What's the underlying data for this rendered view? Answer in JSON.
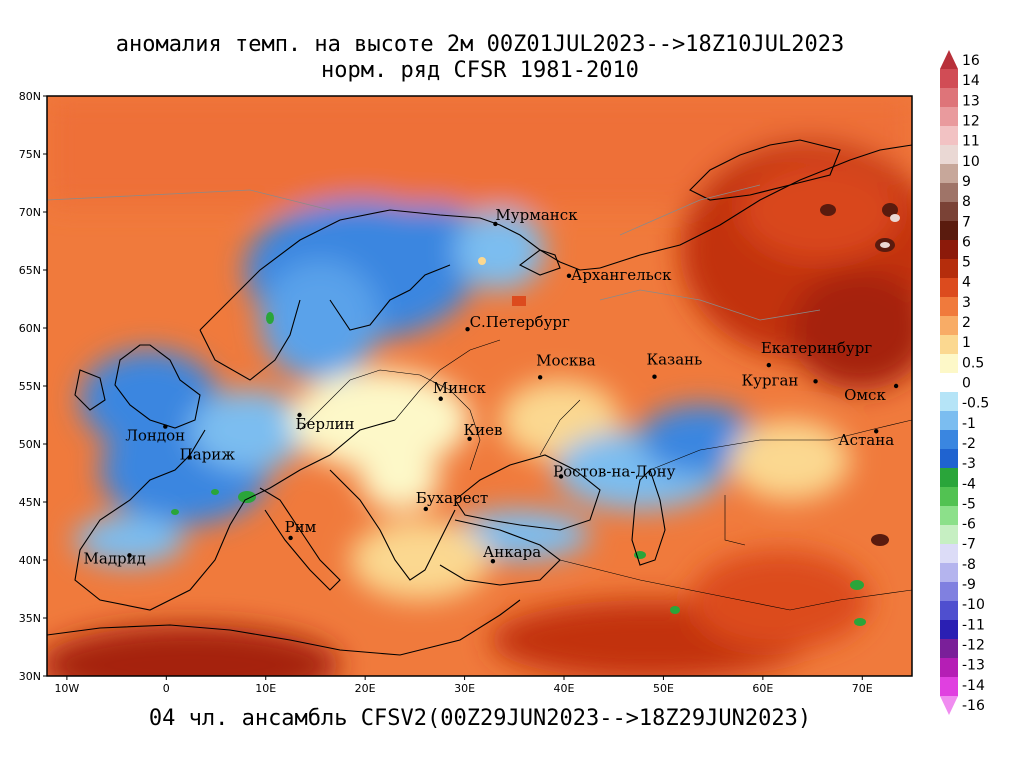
{
  "title": {
    "line1": "аномалия темп. на высоте 2м 00Z01JUL2023-->18Z10JUL2023",
    "line2": "норм. ряд CFSR 1981-2010"
  },
  "footer": "04 чл. ансамбль CFSV2(00Z29JUN2023-->18Z29JUN2023)",
  "map": {
    "lon_range": [
      -12,
      75
    ],
    "lat_range": [
      30,
      80
    ],
    "lat_ticks": [
      "30N",
      "35N",
      "40N",
      "45N",
      "50N",
      "55N",
      "60N",
      "65N",
      "70N",
      "75N",
      "80N"
    ],
    "lon_ticks": [
      "10W",
      "0",
      "10E",
      "20E",
      "30E",
      "40E",
      "50E",
      "60E",
      "70E"
    ],
    "cities": [
      {
        "name": "Мурманск",
        "lon": 33.1,
        "lat": 68.97
      },
      {
        "name": "Архангельск",
        "lon": 40.5,
        "lat": 64.5
      },
      {
        "name": "С.Петербург",
        "lon": 30.3,
        "lat": 59.9
      },
      {
        "name": "Москва",
        "lon": 37.6,
        "lat": 55.75
      },
      {
        "name": "Казань",
        "lon": 49.1,
        "lat": 55.8
      },
      {
        "name": "Екатеринбург",
        "lon": 60.6,
        "lat": 56.8
      },
      {
        "name": "Курган",
        "lon": 65.3,
        "lat": 55.4
      },
      {
        "name": "Омск",
        "lon": 73.4,
        "lat": 55.0
      },
      {
        "name": "Астана",
        "lon": 71.4,
        "lat": 51.1
      },
      {
        "name": "Минск",
        "lon": 27.6,
        "lat": 53.9
      },
      {
        "name": "Берлин",
        "lon": 13.4,
        "lat": 52.5
      },
      {
        "name": "Лондон",
        "lon": -0.1,
        "lat": 51.5
      },
      {
        "name": "Париж",
        "lon": 2.35,
        "lat": 48.85
      },
      {
        "name": "Киев",
        "lon": 30.5,
        "lat": 50.45
      },
      {
        "name": "Ростов-на-Дону",
        "lon": 39.7,
        "lat": 47.2
      },
      {
        "name": "Бухарест",
        "lon": 26.1,
        "lat": 44.4
      },
      {
        "name": "Рим",
        "lon": 12.5,
        "lat": 41.9
      },
      {
        "name": "Мадрид",
        "lon": -3.7,
        "lat": 40.4
      },
      {
        "name": "Анкара",
        "lon": 32.85,
        "lat": 39.9
      }
    ]
  },
  "colorbar": {
    "labels": [
      "16",
      "14",
      "13",
      "12",
      "11",
      "10",
      "9",
      "8",
      "7",
      "6",
      "5",
      "4",
      "3",
      "2",
      "1",
      "0.5",
      "0",
      "-0.5",
      "-1",
      "-2",
      "-3",
      "-4",
      "-5",
      "-6",
      "-7",
      "-8",
      "-9",
      "-10",
      "-11",
      "-12",
      "-13",
      "-14",
      "-16"
    ],
    "colors": [
      "#b8303a",
      "#d14c55",
      "#de7479",
      "#e99a9d",
      "#f2c2c3",
      "#ead8d4",
      "#c7a79a",
      "#9f7468",
      "#7a4236",
      "#5a1b0e",
      "#8c1a0a",
      "#b52d0c",
      "#dc4b1e",
      "#f07a3c",
      "#f8ac66",
      "#fbd890",
      "#fdf8c8",
      "#ffffff",
      "#b5e4f7",
      "#7bbdf0",
      "#3a86e0",
      "#1f63d0",
      "#2aa53a",
      "#52c252",
      "#8ce08a",
      "#c6efc2",
      "#dcdcf7",
      "#b4b4ee",
      "#8080e0",
      "#4f4fcf",
      "#2a1fb3",
      "#7a1f99",
      "#b51eb5",
      "#e040e0",
      "#f08cf0"
    ]
  }
}
